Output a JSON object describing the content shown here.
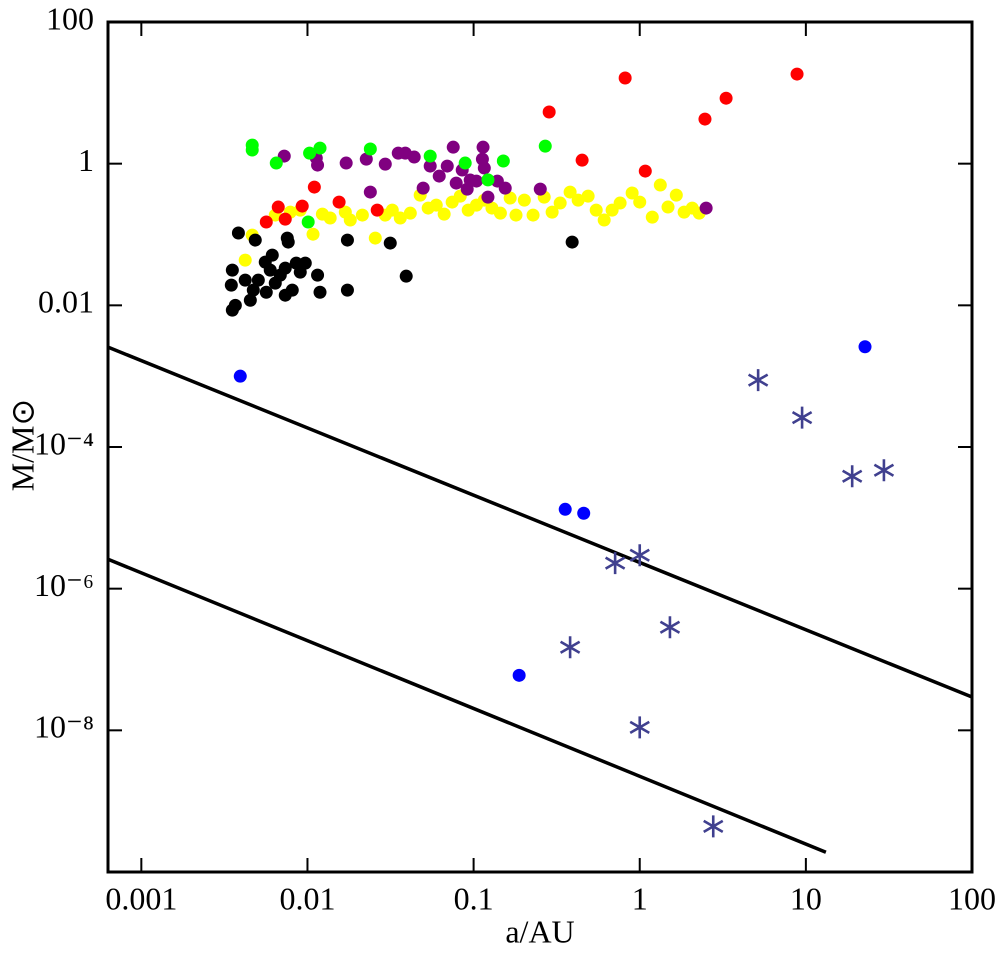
{
  "chart_data": {
    "type": "scatter",
    "x_label": "a/AU",
    "y_label": "M/M⊙",
    "xlog": true,
    "ylog": true,
    "xlim": [
      0.00063,
      100
    ],
    "ylim": [
      1e-10,
      100
    ],
    "xticks": [
      0.001,
      0.01,
      0.1,
      1,
      10,
      100
    ],
    "yticks": [
      100,
      1,
      0.01,
      {
        "value": 0.0001,
        "label": "10⁻⁴"
      },
      {
        "value": 1e-06,
        "label": "10⁻⁶"
      },
      {
        "value": 1e-08,
        "label": "10⁻⁸"
      }
    ],
    "series": [
      {
        "mode": "line",
        "color": "#000000",
        "x": [
          0.00063,
          100
        ],
        "values": [
          0.00257,
          2.95e-08
        ]
      },
      {
        "mode": "line",
        "color": "#000000",
        "x": [
          0.00063,
          13.2
        ],
        "values": [
          2.6e-06,
          1.9e-10
        ]
      },
      {
        "marker": "circle",
        "color": "#ffff00",
        "x": [
          0.00465,
          0.00422,
          0.0064,
          0.00788,
          0.00905,
          0.0108,
          0.0123,
          0.0137,
          0.0169,
          0.0181,
          0.0214,
          0.0256,
          0.0294,
          0.0324,
          0.0362,
          0.0416,
          0.0477,
          0.0533,
          0.0596,
          0.0665,
          0.0743,
          0.0831,
          0.0928,
          0.104,
          0.116,
          0.129,
          0.145,
          0.166,
          0.18,
          0.202,
          0.228,
          0.266,
          0.297,
          0.332,
          0.381,
          0.426,
          0.489,
          0.547,
          0.611,
          0.682,
          0.762,
          0.9,
          1.0,
          1.19,
          1.33,
          1.48,
          1.66,
          1.85,
          2.07,
          2.28
        ],
        "values": [
          0.098,
          0.0435,
          0.188,
          0.207,
          0.221,
          0.101,
          0.194,
          0.171,
          0.207,
          0.16,
          0.188,
          0.089,
          0.188,
          0.221,
          0.171,
          0.2,
          0.36,
          0.236,
          0.26,
          0.194,
          0.287,
          0.348,
          0.221,
          0.26,
          0.306,
          0.236,
          0.2,
          0.327,
          0.188,
          0.306,
          0.188,
          0.337,
          0.207,
          0.278,
          0.397,
          0.306,
          0.348,
          0.221,
          0.16,
          0.221,
          0.278,
          0.385,
          0.287,
          0.176,
          0.499,
          0.244,
          0.36,
          0.207,
          0.236,
          0.2
        ]
      },
      {
        "marker": "circle",
        "color": "#000000",
        "x": [
          0.00384,
          0.00353,
          0.00485,
          0.00348,
          0.00353,
          0.00368,
          0.00453,
          0.00472,
          0.00506,
          0.00565,
          0.00597,
          0.00614,
          0.0064,
          0.00686,
          0.00735,
          0.00756,
          0.00766,
          0.0081,
          0.00856,
          0.00905,
          0.0097,
          0.0115,
          0.0119,
          0.0174,
          0.0174,
          0.0315,
          0.0393,
          0.392,
          0.00557,
          0.00735,
          0.00422
        ],
        "values": [
          0.105,
          0.0314,
          0.0834,
          0.0193,
          0.00855,
          0.01,
          0.0118,
          0.0164,
          0.0227,
          0.0153,
          0.0314,
          0.0512,
          0.0206,
          0.0267,
          0.0335,
          0.089,
          0.0782,
          0.0164,
          0.0394,
          0.0294,
          0.0394,
          0.0267,
          0.0153,
          0.0164,
          0.0834,
          0.0757,
          0.0258,
          0.0782,
          0.0407,
          0.0139,
          0.0227
        ]
      },
      {
        "marker": "circle",
        "color": "#800080",
        "x": [
          0.00725,
          0.0113,
          0.0115,
          0.0171,
          0.0226,
          0.0239,
          0.0294,
          0.0352,
          0.0388,
          0.0439,
          0.0548,
          0.0694,
          0.0754,
          0.0786,
          0.0854,
          0.0915,
          0.0954,
          0.104,
          0.113,
          0.114,
          0.116,
          0.122,
          0.139,
          0.155,
          0.252,
          2.51,
          0.0497,
          0.0621
        ],
        "values": [
          1.28,
          1.2,
          0.955,
          1.02,
          1.16,
          0.397,
          0.986,
          1.41,
          1.41,
          1.24,
          0.925,
          0.925,
          1.71,
          0.532,
          0.813,
          0.437,
          0.587,
          0.568,
          1.16,
          1.71,
          0.867,
          0.337,
          0.568,
          0.452,
          0.437,
          0.236,
          0.452,
          0.668
        ]
      },
      {
        "marker": "circle",
        "color": "#00ff00",
        "x": [
          0.00465,
          0.00465,
          0.00649,
          0.0103,
          0.0119,
          0.0239,
          0.0548,
          0.089,
          0.122,
          0.151,
          0.27,
          0.0101
        ],
        "values": [
          1.83,
          1.56,
          1.02,
          1.41,
          1.66,
          1.61,
          1.28,
          1.02,
          0.59,
          1.09,
          1.77,
          0.15
        ]
      },
      {
        "marker": "circle",
        "color": "#ff0000",
        "x": [
          0.285,
          0.817,
          3.31,
          8.85,
          2.47,
          0.45,
          1.08,
          0.011,
          0.0155,
          0.0093,
          0.00667,
          0.00565,
          0.00735,
          0.0263
        ],
        "values": [
          5.36,
          16.2,
          8.4,
          18.4,
          4.26,
          1.12,
          0.786,
          0.467,
          0.287,
          0.252,
          0.244,
          0.15,
          0.165,
          0.221
        ]
      },
      {
        "marker": "circle",
        "color": "#0000ff",
        "x": [
          0.00394,
          22.7,
          0.356,
          0.46,
          0.188
        ],
        "values": [
          0.001,
          0.0026,
          1.32e-05,
          1.16e-05,
          5.98e-08
        ]
      },
      {
        "marker": "star",
        "color": "#40408f",
        "x": [
          0.381,
          0.711,
          1.0,
          1.52,
          5.16,
          9.49,
          19,
          29.5,
          1.0,
          2.77
        ],
        "values": [
          1.49e-07,
          2.29e-06,
          2.96e-06,
          2.85e-07,
          0.00088,
          0.00026,
          3.87e-05,
          4.7e-05,
          1.1e-08,
          4.4e-10
        ]
      }
    ]
  }
}
